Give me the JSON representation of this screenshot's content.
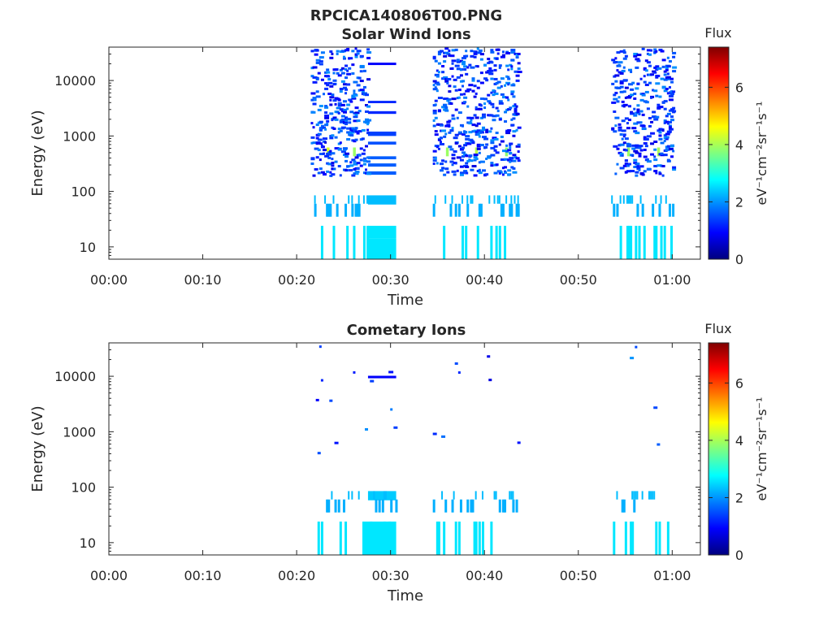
{
  "figure_title": "RPCICA140806T00.PNG",
  "colors": {
    "colormap": [
      "#00007f",
      "#0000ff",
      "#007fff",
      "#00ffff",
      "#7fff7f",
      "#ffff00",
      "#ff7f00",
      "#ff0000",
      "#7f0000"
    ],
    "axis": "#262626",
    "background": "#ffffff"
  },
  "chart_data": [
    {
      "type": "heatmap",
      "title": "Solar Wind Ions",
      "xlabel": "Time",
      "ylabel": "Energy (eV)",
      "x_unit": "minutes",
      "xlim": [
        0,
        63
      ],
      "ylim": [
        6,
        40000
      ],
      "y_scale": "log",
      "x_ticks": [
        0,
        10,
        20,
        30,
        40,
        50,
        60
      ],
      "x_tick_labels": [
        "00:00",
        "00:10",
        "00:20",
        "00:30",
        "00:40",
        "00:50",
        "01:00"
      ],
      "y_ticks": [
        10,
        100,
        1000,
        10000
      ],
      "y_tick_labels": [
        "10",
        "100",
        "1000",
        "10000"
      ],
      "colorbar": {
        "title": "Flux",
        "label": "eV⁻¹cm⁻²sr⁻¹s⁻¹",
        "range": [
          0,
          7.4
        ],
        "ticks": [
          0,
          2,
          4,
          6
        ],
        "tick_labels": [
          "0",
          "2",
          "4",
          "6"
        ]
      },
      "grid": false,
      "data_windows_minutes": [
        [
          21.5,
          30.5
        ],
        [
          34.5,
          43.5
        ],
        [
          53.5,
          60
        ]
      ],
      "blocks": [
        {
          "t0": 27.6,
          "t1": 30.6,
          "e0": 14,
          "e1": 24,
          "value": 2.6
        },
        {
          "t0": 27.6,
          "t1": 30.6,
          "e0": 6,
          "e1": 14,
          "value": 2.6
        },
        {
          "t0": 27.6,
          "t1": 30.6,
          "e0": 58,
          "e1": 85,
          "value": 2.3
        },
        {
          "t0": 27.6,
          "t1": 30.6,
          "e0": 19000,
          "e1": 21000,
          "value": 0.9
        },
        {
          "t0": 27.6,
          "t1": 30.6,
          "e0": 3900,
          "e1": 4300,
          "value": 1.2
        },
        {
          "t0": 27.6,
          "t1": 30.6,
          "e0": 2500,
          "e1": 2800,
          "value": 1.2
        },
        {
          "t0": 27.6,
          "t1": 30.6,
          "e0": 1000,
          "e1": 1200,
          "value": 1.4
        },
        {
          "t0": 27.6,
          "t1": 30.6,
          "e0": 700,
          "e1": 790,
          "value": 1.5
        },
        {
          "t0": 27.6,
          "t1": 30.6,
          "e0": 380,
          "e1": 430,
          "value": 1.6
        },
        {
          "t0": 27.6,
          "t1": 30.6,
          "e0": 280,
          "e1": 320,
          "value": 1.6
        },
        {
          "t0": 27.6,
          "t1": 30.6,
          "e0": 200,
          "e1": 230,
          "value": 1.6
        },
        {
          "t0": 23.2,
          "t1": 23.5,
          "e0": 430,
          "e1": 620,
          "value": 4.4
        },
        {
          "t0": 26.0,
          "t1": 26.3,
          "e0": 430,
          "e1": 620,
          "value": 3.9
        },
        {
          "t0": 35.9,
          "t1": 36.2,
          "e0": 430,
          "e1": 620,
          "value": 3.9
        },
        {
          "t0": 39.0,
          "t1": 39.3,
          "e0": 430,
          "e1": 620,
          "value": 4.1
        },
        {
          "t0": 42.2,
          "t1": 42.5,
          "e0": 430,
          "e1": 620,
          "value": 3.8
        },
        {
          "t0": 55.2,
          "t1": 55.5,
          "e0": 430,
          "e1": 620,
          "value": 3.9
        },
        {
          "t0": 58.4,
          "t1": 58.7,
          "e0": 430,
          "e1": 620,
          "value": 4.0
        }
      ],
      "scatter_density": 1.0
    },
    {
      "type": "heatmap",
      "title": "Cometary Ions",
      "xlabel": "Time",
      "ylabel": "Energy (eV)",
      "x_unit": "minutes",
      "xlim": [
        0,
        63
      ],
      "ylim": [
        6,
        40000
      ],
      "y_scale": "log",
      "x_ticks": [
        0,
        10,
        20,
        30,
        40,
        50,
        60
      ],
      "x_tick_labels": [
        "00:00",
        "00:10",
        "00:20",
        "00:30",
        "00:40",
        "00:50",
        "01:00"
      ],
      "y_ticks": [
        10,
        100,
        1000,
        10000
      ],
      "y_tick_labels": [
        "10",
        "100",
        "1000",
        "10000"
      ],
      "colorbar": {
        "title": "Flux",
        "label": "eV⁻¹cm⁻²sr⁻¹s⁻¹",
        "range": [
          0,
          7.4
        ],
        "ticks": [
          0,
          2,
          4,
          6
        ],
        "tick_labels": [
          "0",
          "2",
          "4",
          "6"
        ]
      },
      "grid": false,
      "data_windows_minutes": [
        [
          21.5,
          30.5
        ],
        [
          34.5,
          43.5
        ],
        [
          53.5,
          60
        ]
      ],
      "blocks": [
        {
          "t0": 27.0,
          "t1": 30.6,
          "e0": 6,
          "e1": 24,
          "value": 2.6
        },
        {
          "t0": 27.6,
          "t1": 30.6,
          "e0": 58,
          "e1": 85,
          "value": 2.4
        },
        {
          "t0": 27.6,
          "t1": 30.6,
          "e0": 9200,
          "e1": 10200,
          "value": 0.9
        }
      ],
      "scatter_density": 0.35
    }
  ]
}
